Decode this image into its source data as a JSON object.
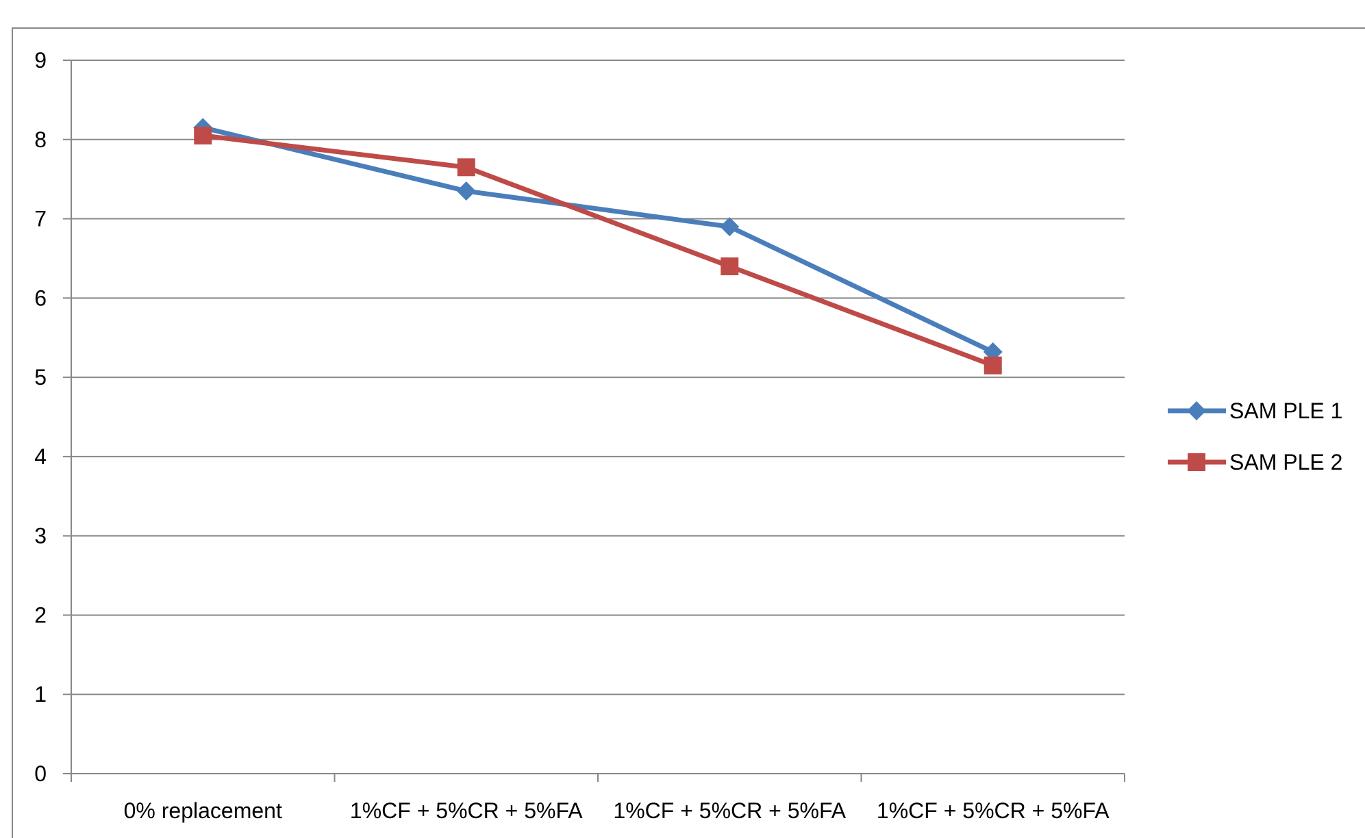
{
  "chart_data": {
    "type": "line",
    "categories": [
      "0% replacement",
      "1%CF + 5%CR + 5%FA",
      "1%CF + 5%CR + 5%FA",
      "1%CF + 5%CR + 5%FA"
    ],
    "series": [
      {
        "name": "SAM PLE 1",
        "values": [
          8.15,
          7.35,
          6.9,
          5.32
        ],
        "color": "#4a7ebb",
        "marker": "diamond"
      },
      {
        "name": "SAM PLE 2",
        "values": [
          8.05,
          7.65,
          6.4,
          5.15
        ],
        "color": "#be4b48",
        "marker": "square"
      }
    ],
    "yticks": [
      "0",
      "1",
      "2",
      "3",
      "4",
      "5",
      "6",
      "7",
      "8",
      "9"
    ],
    "ylim": [
      0,
      9
    ],
    "grid": true,
    "legend": "right",
    "title": "",
    "xlabel": "",
    "ylabel": ""
  }
}
